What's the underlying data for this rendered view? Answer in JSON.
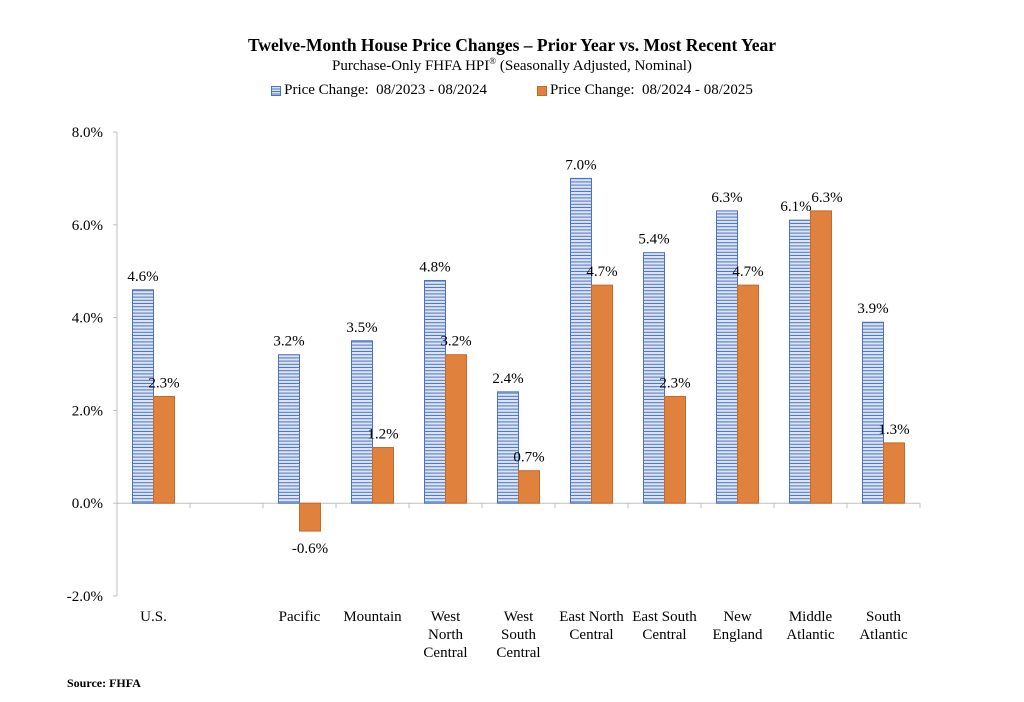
{
  "chart_data": {
    "type": "bar",
    "title": "Twelve-Month House Price Changes – Prior Year vs. Most Recent Year",
    "subtitle": "Purchase-Only FHFA HPI",
    "subtitle_mark": "®",
    "subtitle_tail": " (Seasonally Adjusted, Nominal)",
    "xlabel": "",
    "ylabel": "",
    "ylim": [
      -2.0,
      8.0
    ],
    "yticks": [
      -2.0,
      0.0,
      2.0,
      4.0,
      6.0,
      8.0
    ],
    "ytick_labels": [
      "-2.0%",
      "0.0%",
      "2.0%",
      "4.0%",
      "6.0%",
      "8.0%"
    ],
    "grid": false,
    "legend_position": "top",
    "categories": [
      [
        "U.S."
      ],
      [],
      [
        "Pacific"
      ],
      [
        "Mountain"
      ],
      [
        "West",
        "North",
        "Central"
      ],
      [
        "West",
        "South",
        "Central"
      ],
      [
        "East North",
        "Central"
      ],
      [
        "East South",
        "Central"
      ],
      [
        "New",
        "England"
      ],
      [
        "Middle",
        "Atlantic"
      ],
      [
        "South",
        "Atlantic"
      ]
    ],
    "series": [
      {
        "name": "Price Change:  08/2023 - 08/2024",
        "color": "#4a72c4",
        "fill": "#dde5f4",
        "values": [
          4.6,
          null,
          3.2,
          3.5,
          4.8,
          2.4,
          7.0,
          5.4,
          6.3,
          6.1,
          3.9
        ],
        "labels": [
          "4.6%",
          "",
          "3.2%",
          "3.5%",
          "4.8%",
          "2.4%",
          "7.0%",
          "5.4%",
          "6.3%",
          "6.1%",
          "3.9%"
        ]
      },
      {
        "name": "Price Change:  08/2024 - 08/2025",
        "color": "#e0823e",
        "border": "#c26a2a",
        "values": [
          2.3,
          null,
          -0.6,
          1.2,
          3.2,
          0.7,
          4.7,
          2.3,
          4.7,
          6.3,
          1.3
        ],
        "labels": [
          "2.3%",
          "",
          "-0.6%",
          "1.2%",
          "3.2%",
          "0.7%",
          "4.7%",
          "2.3%",
          "4.7%",
          "6.3%",
          "1.3%"
        ]
      }
    ],
    "source": "Source: FHFA"
  }
}
